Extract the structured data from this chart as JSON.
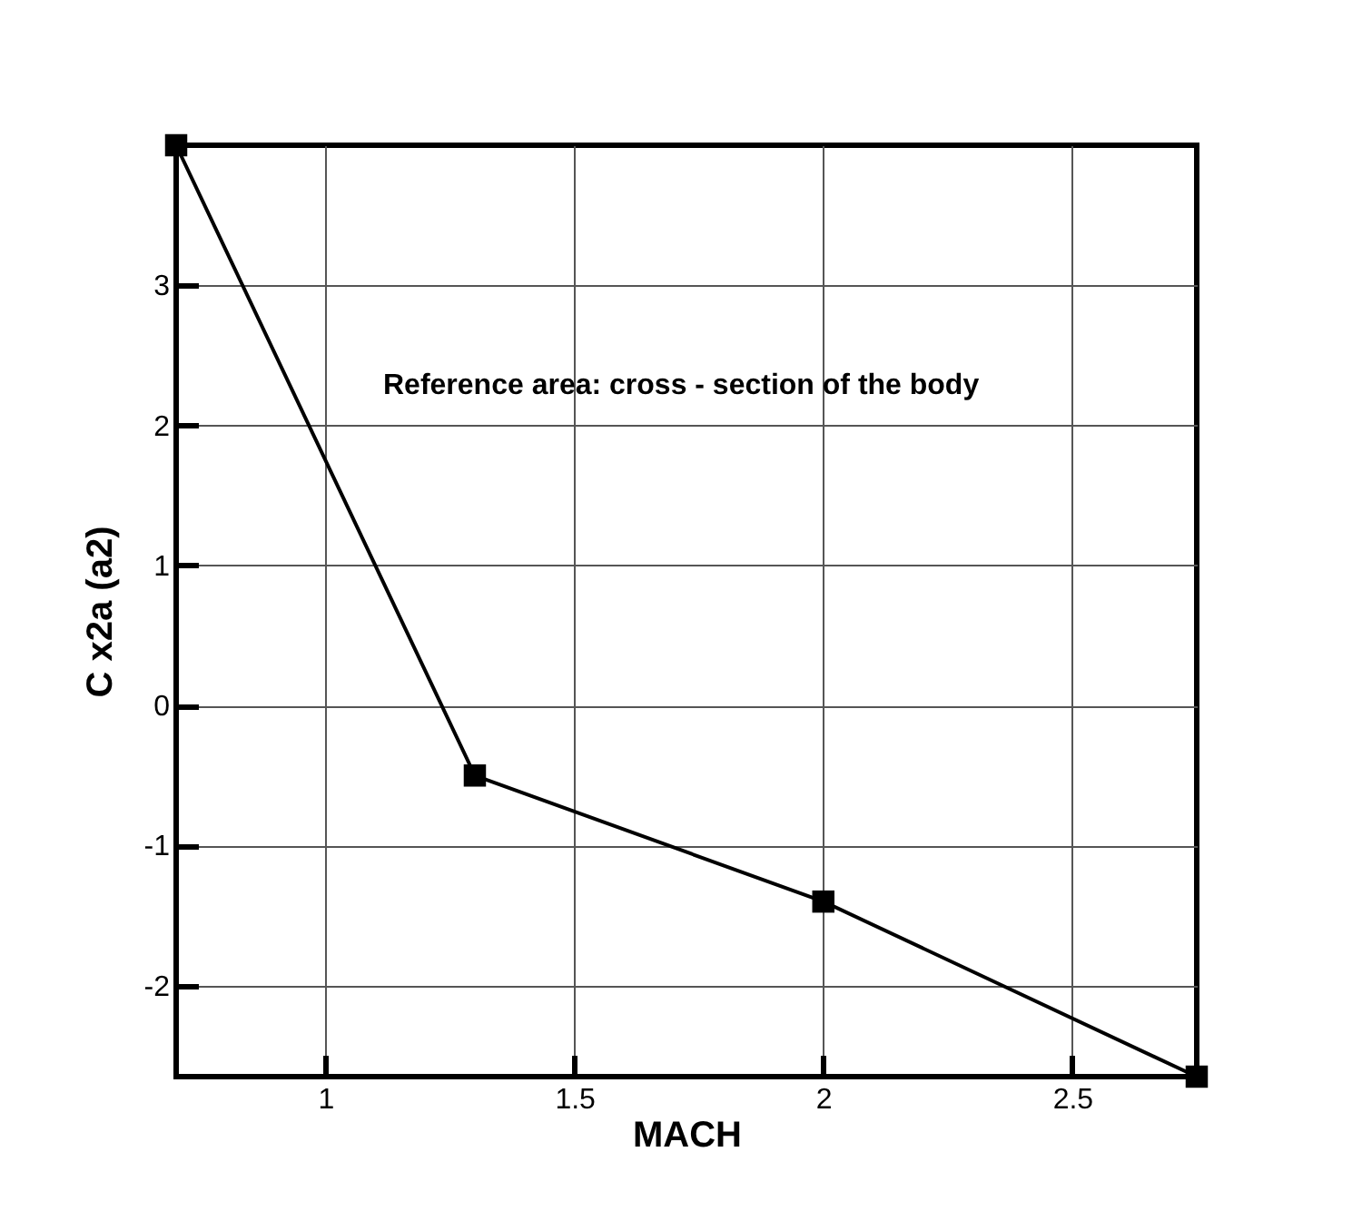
{
  "chart_data": {
    "type": "line",
    "xlabel": "MACH",
    "ylabel": "C x2a  (a2)",
    "annotations": [
      "Reference area:     cross - section of the body"
    ],
    "x": [
      0.7,
      1.3,
      2,
      2.75
    ],
    "series": [
      {
        "color": "#000000",
        "values": [
          4,
          -0.5,
          -1.4,
          -2.65
        ]
      }
    ],
    "xlim": [
      0.7,
      2.75
    ],
    "xticks": [
      1,
      1.5,
      2,
      2.5
    ],
    "ylim": [
      -2.65,
      4
    ],
    "yticks": [
      -2,
      -1,
      0,
      1,
      2,
      3
    ],
    "grid": true,
    "marker": "square",
    "line_style": "solid"
  }
}
